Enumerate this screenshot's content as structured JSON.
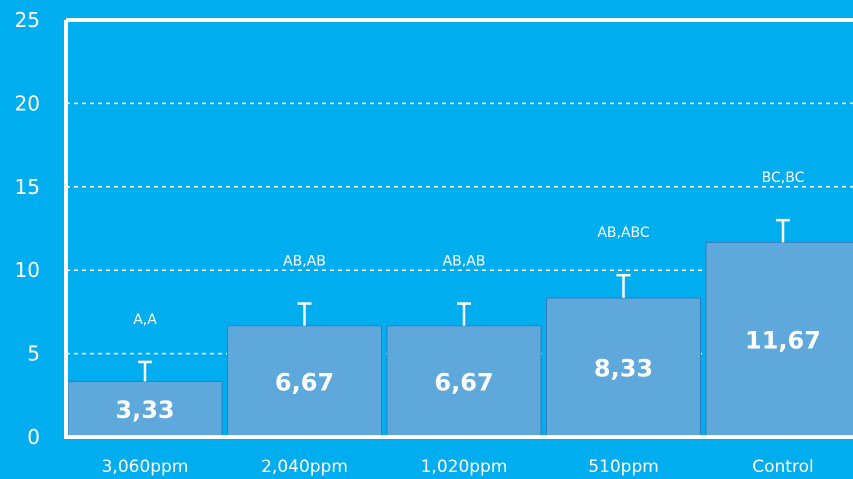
{
  "chart_data": {
    "type": "bar",
    "categories": [
      "3,060ppm",
      "2,040ppm",
      "1,020ppm",
      "510ppm",
      "Control"
    ],
    "values": [
      3.33,
      6.67,
      6.67,
      8.33,
      11.67
    ],
    "value_labels": [
      "3,33",
      "6,67",
      "6,67",
      "8,33",
      "11,67"
    ],
    "error_upper": [
      4.5,
      8.0,
      8.0,
      9.7,
      13.0
    ],
    "annotations": [
      "A,A",
      "AB,AB",
      "AB,AB",
      "AB,ABC",
      "BC,BC"
    ],
    "ylim": [
      0,
      25
    ],
    "yticks": [
      0,
      5,
      10,
      15,
      20,
      25
    ],
    "grid": "dashed horizontal",
    "colors": {
      "background": "#00adef",
      "bar": "#5ea8dc",
      "bar_edge": "#2f7fbf",
      "axis": "#ffffff",
      "text": "#ffffff"
    }
  }
}
